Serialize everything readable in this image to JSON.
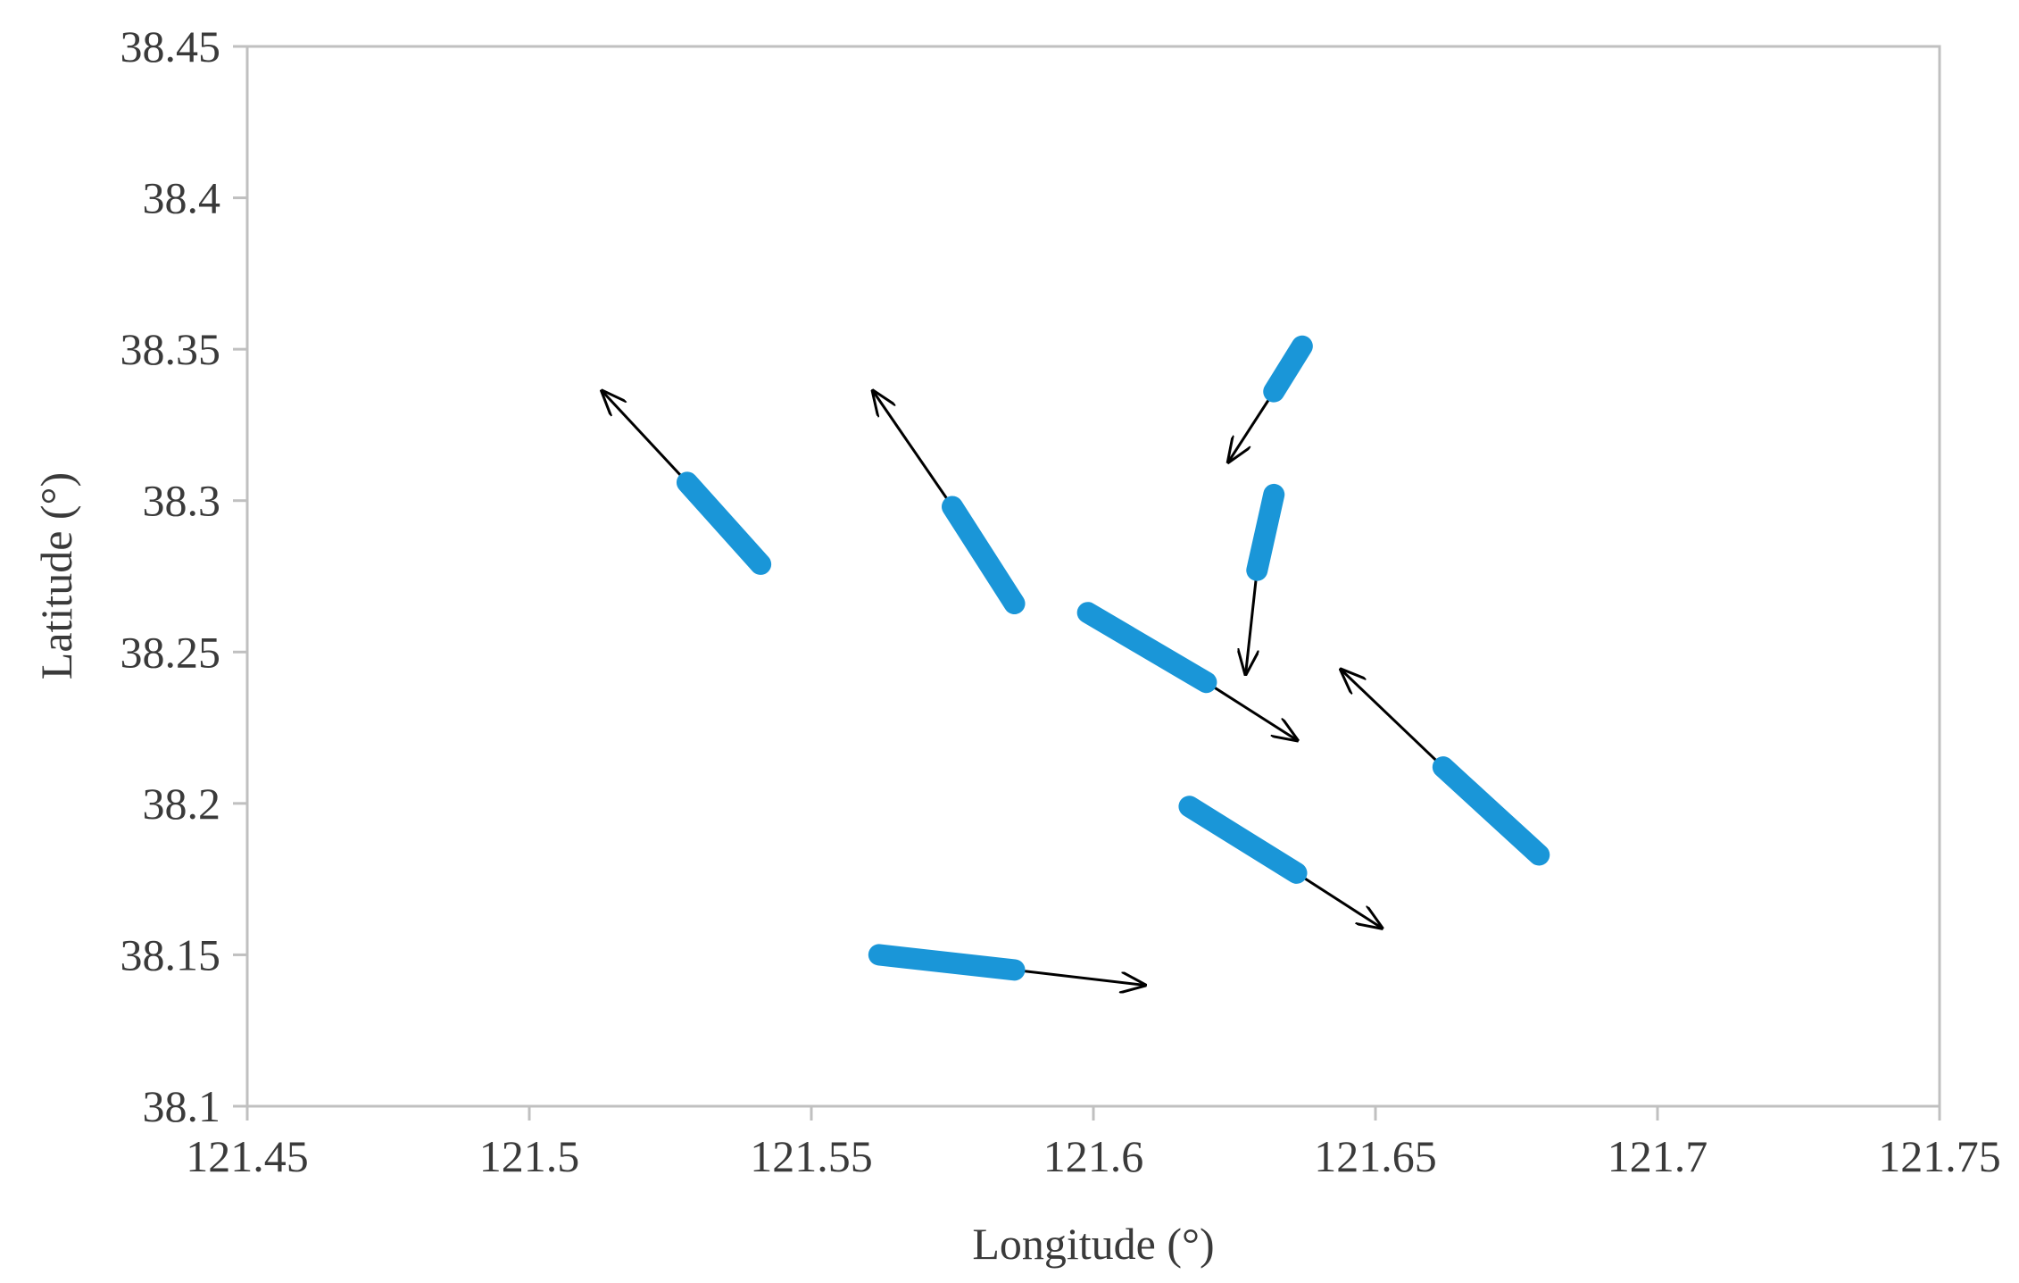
{
  "chart_data": {
    "type": "vector-field",
    "xlabel": "Longitude (°)",
    "ylabel": "Latitude (°)",
    "xlim": [
      121.45,
      121.75
    ],
    "ylim": [
      38.1,
      38.45
    ],
    "xticks": [
      "121.45",
      "121.5",
      "121.55",
      "121.6",
      "121.65",
      "121.7",
      "121.75"
    ],
    "yticks": [
      "38.45",
      "38.4",
      "38.35",
      "38.3",
      "38.25",
      "38.2",
      "38.15",
      "38.1"
    ],
    "grid": false,
    "colors": {
      "segment": "#1a96d8",
      "arrow": "#000000",
      "axis": "#c0c0c0"
    },
    "series": [
      {
        "segment": [
          [
            121.541,
            38.279
          ],
          [
            121.528,
            38.306
          ]
        ],
        "arrow": [
          [
            121.528,
            38.306
          ],
          [
            121.513,
            38.336
          ]
        ]
      },
      {
        "segment": [
          [
            121.586,
            38.266
          ],
          [
            121.575,
            38.298
          ]
        ],
        "arrow": [
          [
            121.575,
            38.298
          ],
          [
            121.561,
            38.336
          ]
        ]
      },
      {
        "segment": [
          [
            121.637,
            38.351
          ],
          [
            121.632,
            38.336
          ]
        ],
        "arrow": [
          [
            121.632,
            38.336
          ],
          [
            121.624,
            38.313
          ]
        ]
      },
      {
        "segment": [
          [
            121.632,
            38.302
          ],
          [
            121.629,
            38.277
          ]
        ],
        "arrow": [
          [
            121.629,
            38.277
          ],
          [
            121.627,
            38.243
          ]
        ]
      },
      {
        "segment": [
          [
            121.599,
            38.263
          ],
          [
            121.62,
            38.24
          ]
        ],
        "arrow": [
          [
            121.62,
            38.24
          ],
          [
            121.636,
            38.221
          ]
        ]
      },
      {
        "segment": [
          [
            121.679,
            38.183
          ],
          [
            121.662,
            38.212
          ]
        ],
        "arrow": [
          [
            121.662,
            38.212
          ],
          [
            121.644,
            38.244
          ]
        ]
      },
      {
        "segment": [
          [
            121.617,
            38.199
          ],
          [
            121.636,
            38.177
          ]
        ],
        "arrow": [
          [
            121.636,
            38.177
          ],
          [
            121.651,
            38.159
          ]
        ]
      },
      {
        "segment": [
          [
            121.562,
            38.15
          ],
          [
            121.586,
            38.145
          ]
        ],
        "arrow": [
          [
            121.586,
            38.145
          ],
          [
            121.609,
            38.14
          ]
        ]
      }
    ]
  }
}
